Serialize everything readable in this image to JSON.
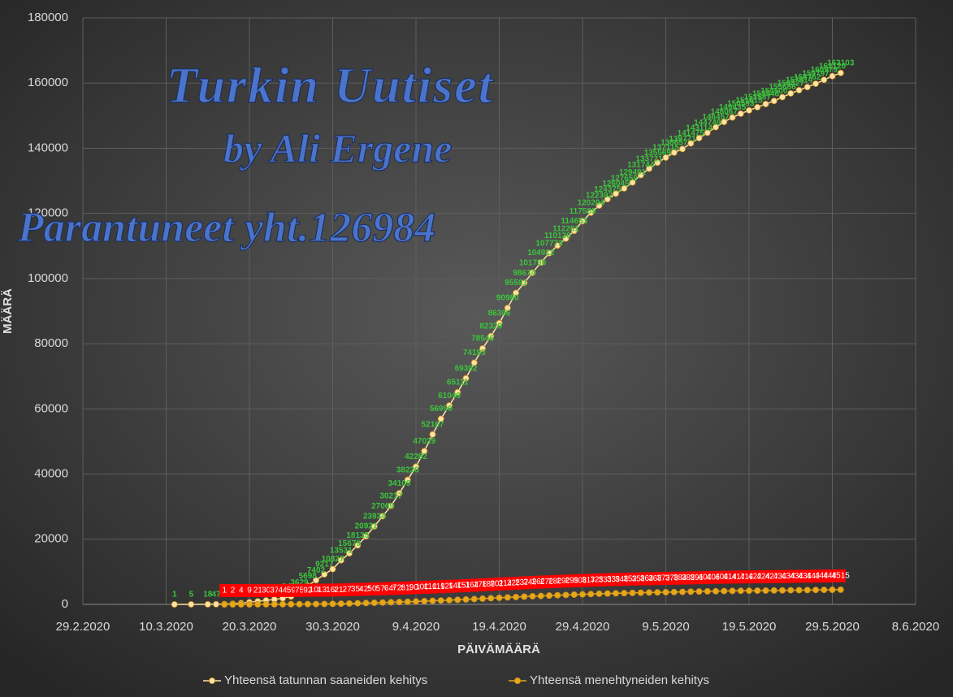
{
  "chart_data": {
    "type": "line",
    "annotations": [
      "Turkin Uutiset",
      "by Ali Ergene",
      "Parantuneet yht.126984"
    ],
    "x_label": "PÄIVÄMÄÄRÄ",
    "y_label": "MÄÄRÄ",
    "xlim": [
      "29.2.2020",
      "8.6.2020"
    ],
    "xticks": [
      "29.2.2020",
      "10.3.2020",
      "20.3.2020",
      "30.3.2020",
      "9.4.2020",
      "19.4.2020",
      "29.4.2020",
      "9.5.2020",
      "19.5.2020",
      "29.5.2020",
      "8.6.2020"
    ],
    "ylim": [
      0,
      180000
    ],
    "yticks": [
      0,
      20000,
      40000,
      60000,
      80000,
      100000,
      120000,
      140000,
      160000,
      180000
    ],
    "grid": true,
    "legend": "bottom",
    "series": [
      {
        "name": "Yhteensä tatunnan saaneiden kehitys",
        "color": "#ffe3a3",
        "label_color": "#3cc43c",
        "x": [
          "11.3.2020",
          "13.3.2020",
          "15.3.2020",
          "16.3.2020",
          "17.3.2020",
          "18.3.2020",
          "19.3.2020",
          "20.3.2020",
          "21.3.2020",
          "22.3.2020",
          "23.3.2020",
          "24.3.2020",
          "25.3.2020",
          "26.3.2020",
          "27.3.2020",
          "28.3.2020",
          "29.3.2020",
          "30.3.2020",
          "31.3.2020",
          "1.4.2020",
          "2.4.2020",
          "3.4.2020",
          "4.4.2020",
          "5.4.2020",
          "6.4.2020",
          "7.4.2020",
          "8.4.2020",
          "9.4.2020",
          "10.4.2020",
          "11.4.2020",
          "12.4.2020",
          "13.4.2020",
          "14.4.2020",
          "15.4.2020",
          "16.4.2020",
          "17.4.2020",
          "18.4.2020",
          "19.4.2020",
          "20.4.2020",
          "21.4.2020",
          "22.4.2020",
          "23.4.2020",
          "24.4.2020",
          "25.4.2020",
          "26.4.2020",
          "27.4.2020",
          "28.4.2020",
          "29.4.2020",
          "30.4.2020",
          "1.5.2020",
          "2.5.2020",
          "3.5.2020",
          "4.5.2020",
          "5.5.2020",
          "6.5.2020",
          "7.5.2020",
          "8.5.2020",
          "9.5.2020",
          "10.5.2020",
          "11.5.2020",
          "12.5.2020",
          "13.5.2020",
          "14.5.2020",
          "15.5.2020",
          "16.5.2020",
          "17.5.2020",
          "18.5.2020",
          "19.5.2020",
          "20.5.2020",
          "21.5.2020",
          "22.5.2020",
          "23.5.2020",
          "24.5.2020",
          "25.5.2020",
          "26.5.2020",
          "27.5.2020",
          "28.5.2020",
          "29.5.2020",
          "30.5.2020"
        ],
        "values": [
          1,
          5,
          18,
          47,
          98,
          191,
          359,
          670,
          947,
          1236,
          1529,
          1872,
          2433,
          3629,
          5698,
          7402,
          9217,
          10827,
          13531,
          15679,
          18135,
          20921,
          23934,
          27069,
          30217,
          34109,
          38226,
          42282,
          47029,
          52167,
          56956,
          61049,
          65111,
          69392,
          74193,
          78546,
          82329,
          86306,
          90980,
          95591,
          98674,
          101790,
          104912,
          107773,
          110130,
          112261,
          114653,
          117589,
          120204,
          122392,
          124375,
          126045,
          127659,
          129491,
          131744,
          133721,
          135569,
          137115,
          138657,
          139771,
          141475,
          143114,
          144749,
          146457,
          148067,
          149435,
          150593,
          151615,
          152587,
          153548,
          154500,
          155686,
          156827,
          157814,
          158762,
          159797,
          160979,
          162120,
          163103
        ]
      },
      {
        "name": "Yhteensä menehtyneiden kehitys",
        "color": "#e6a817",
        "label_color": "#ffffff",
        "label_background": "#ff0000",
        "x": [
          "17.3.2020",
          "18.3.2020",
          "19.3.2020",
          "20.3.2020",
          "21.3.2020",
          "22.3.2020",
          "23.3.2020",
          "24.3.2020",
          "25.3.2020",
          "26.3.2020",
          "27.3.2020",
          "28.3.2020",
          "29.3.2020",
          "30.3.2020",
          "31.3.2020",
          "1.4.2020",
          "2.4.2020",
          "3.4.2020",
          "4.4.2020",
          "5.4.2020",
          "6.4.2020",
          "7.4.2020",
          "8.4.2020",
          "9.4.2020",
          "10.4.2020",
          "11.4.2020",
          "12.4.2020",
          "13.4.2020",
          "14.4.2020",
          "15.4.2020",
          "16.4.2020",
          "17.4.2020",
          "18.4.2020",
          "19.4.2020",
          "20.4.2020",
          "21.4.2020",
          "22.4.2020",
          "23.4.2020",
          "24.4.2020",
          "25.4.2020",
          "26.4.2020",
          "27.4.2020",
          "28.4.2020",
          "29.4.2020",
          "30.4.2020",
          "1.5.2020",
          "2.5.2020",
          "3.5.2020",
          "4.5.2020",
          "5.5.2020",
          "6.5.2020",
          "7.5.2020",
          "8.5.2020",
          "9.5.2020",
          "10.5.2020",
          "11.5.2020",
          "12.5.2020",
          "13.5.2020",
          "14.5.2020",
          "15.5.2020",
          "16.5.2020",
          "17.5.2020",
          "18.5.2020",
          "19.5.2020",
          "20.5.2020",
          "21.5.2020",
          "22.5.2020",
          "23.5.2020",
          "24.5.2020",
          "25.5.2020",
          "26.5.2020",
          "27.5.2020",
          "28.5.2020",
          "29.5.2020",
          "30.5.2020"
        ],
        "values": [
          1,
          2,
          4,
          9,
          21,
          30,
          37,
          44,
          59,
          75,
          92,
          108,
          131,
          168,
          214,
          277,
          356,
          425,
          501,
          574,
          649,
          725,
          812,
          908,
          1006,
          1101,
          1198,
          1296,
          1403,
          1518,
          1643,
          1769,
          1890,
          2017,
          2140,
          2259,
          2376,
          2491,
          2600,
          2706,
          2805,
          2900,
          2992,
          3081,
          3174,
          3258,
          3336,
          3397,
          3461,
          3520,
          3584,
          3641,
          3689,
          3739,
          3786,
          3841,
          3894,
          3952,
          4007,
          4055,
          4096,
          4140,
          4171,
          4199,
          4222,
          4249,
          4276,
          4308,
          4340,
          4369,
          4397,
          4431,
          4461,
          4489,
          4515
        ]
      }
    ]
  }
}
